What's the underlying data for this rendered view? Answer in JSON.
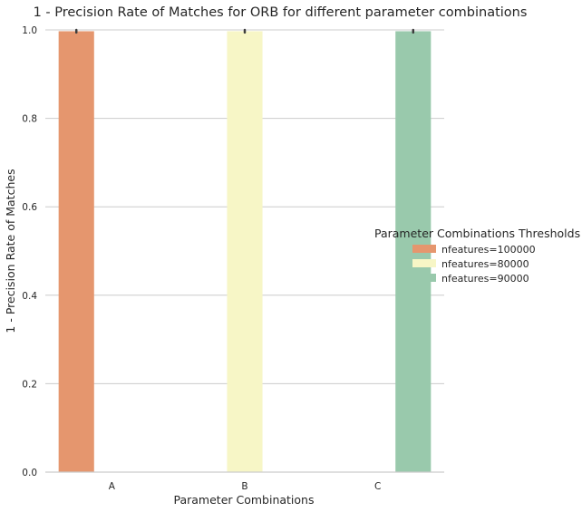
{
  "chart_data": {
    "type": "bar",
    "title": "1 - Precision Rate of Matches for ORB for different parameter combinations",
    "xlabel": "Parameter Combinations",
    "ylabel": "1 - Precision Rate of Matches",
    "categories": [
      "A",
      "B",
      "C"
    ],
    "ylim": [
      0,
      1.0
    ],
    "yticks": [
      "0.0",
      "0.2",
      "0.4",
      "0.6",
      "0.8",
      "1.0"
    ],
    "grid": true,
    "legend": {
      "title": "Parameter Combinations Thresholds",
      "placement": "right"
    },
    "series": [
      {
        "name": "nfeatures=100000",
        "color": "#e5966e",
        "values": [
          0.997,
          null,
          null
        ],
        "error": [
          0.003,
          null,
          null
        ]
      },
      {
        "name": "nfeatures=80000",
        "color": "#f7f6c6",
        "values": [
          null,
          0.997,
          null
        ],
        "error": [
          null,
          0.003,
          null
        ]
      },
      {
        "name": "nfeatures=90000",
        "color": "#99c9ac",
        "values": [
          null,
          null,
          0.997
        ],
        "error": [
          null,
          null,
          0.003
        ]
      }
    ]
  }
}
